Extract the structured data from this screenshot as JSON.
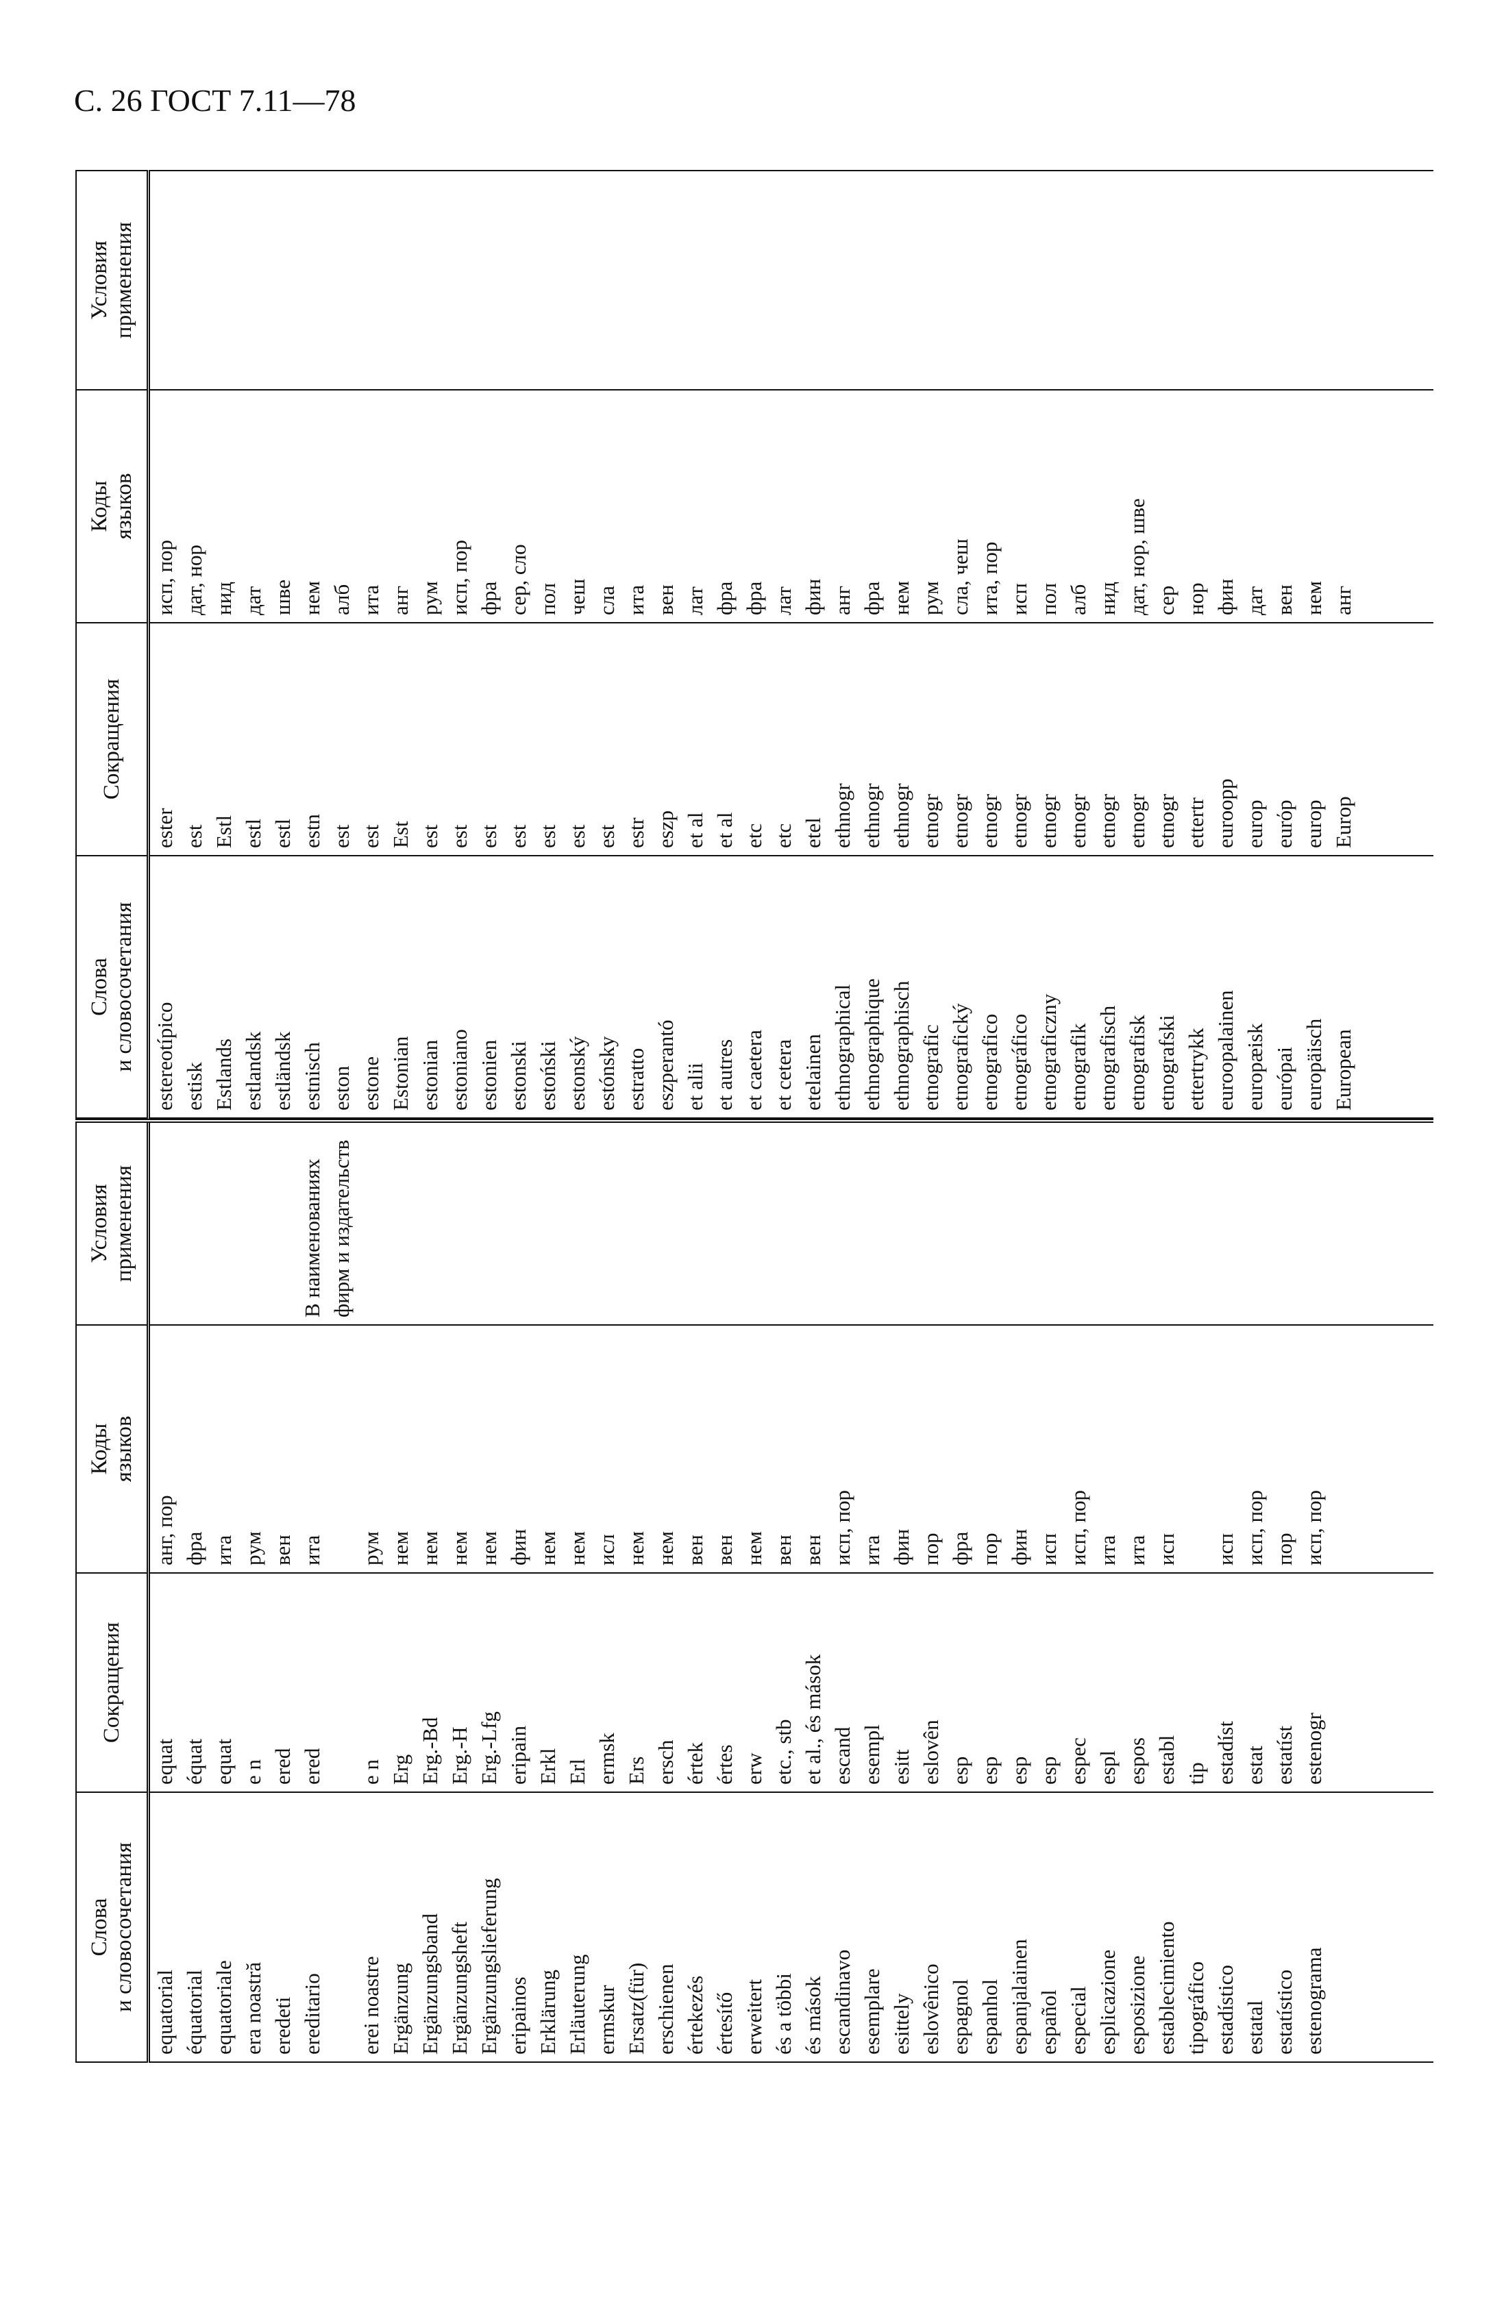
{
  "header": {
    "title": "С. 26 ГОСТ 7.11—78"
  },
  "tables": [
    {
      "columns": [
        "Слова\nи словосочетания",
        "Сокращения",
        "Коды\nязыков",
        "Условия\nприменения"
      ],
      "rows": [
        {
          "word": "equatorial",
          "abbr": "equat",
          "codes": "анг, пор"
        },
        {
          "word": "équatorial",
          "abbr": "équat",
          "codes": "фра"
        },
        {
          "word": "equatoriale",
          "abbr": "equat",
          "codes": "ита"
        },
        {
          "word": "era noastră",
          "abbr": "e n",
          "codes": "рум"
        },
        {
          "word": "eredeti",
          "abbr": "ered",
          "codes": "вен"
        },
        {
          "word": "ereditario",
          "abbr": "ered",
          "codes": "ита",
          "note": "В наименованиях фирм и издательств"
        },
        {
          "word": "erei noastre",
          "abbr": "e n",
          "codes": "рум"
        },
        {
          "word": "Ergänzung",
          "abbr": "Erg",
          "codes": "нем"
        },
        {
          "word": "Ergänzungsband",
          "abbr": "Erg.-Bd",
          "codes": "нем"
        },
        {
          "word": "Ergänzungsheft",
          "abbr": "Erg.-H",
          "codes": "нем"
        },
        {
          "word": "Ergänzungslieferung",
          "abbr": "Erg.-Lfg",
          "codes": "нем"
        },
        {
          "word": "eripainos",
          "abbr": "eripain",
          "codes": "фин"
        },
        {
          "word": "Erklärung",
          "abbr": "Erkl",
          "codes": "нем"
        },
        {
          "word": "Erläuterung",
          "abbr": "Erl",
          "codes": "нем"
        },
        {
          "word": "ermskur",
          "abbr": "ermsk",
          "codes": "исл"
        },
        {
          "word": "Ersatz(für)",
          "abbr": "Ers",
          "codes": "нем"
        },
        {
          "word": "erschienen",
          "abbr": "ersch",
          "codes": "нем"
        },
        {
          "word": "értekezés",
          "abbr": "értek",
          "codes": "вен"
        },
        {
          "word": "értesítő",
          "abbr": "értes",
          "codes": "вен"
        },
        {
          "word": "erweitert",
          "abbr": "erw",
          "codes": "нем"
        },
        {
          "word": "és a többi",
          "abbr": "etc., stb",
          "codes": "вен"
        },
        {
          "word": "és mások",
          "abbr": "et al., és mások",
          "codes": "вен"
        },
        {
          "word": "escandinavo",
          "abbr": "escand",
          "codes": "исп, пор"
        },
        {
          "word": "esemplare",
          "abbr": "esempl",
          "codes": "ита"
        },
        {
          "word": "esittely",
          "abbr": "esitt",
          "codes": "фин"
        },
        {
          "word": "eslovênico",
          "abbr": "eslovên",
          "codes": "пор"
        },
        {
          "word": "espagnol",
          "abbr": "esp",
          "codes": "фра"
        },
        {
          "word": "espanhol",
          "abbr": "esp",
          "codes": "пор"
        },
        {
          "word": "espanjalainen",
          "abbr": "esp",
          "codes": "фин"
        },
        {
          "word": "español",
          "abbr": "esp",
          "codes": "исп"
        },
        {
          "word": "especial",
          "abbr": "espec",
          "codes": "исп, пор"
        },
        {
          "word": "esplicazione",
          "abbr": "espl",
          "codes": "ита"
        },
        {
          "word": "esposizione",
          "abbr": "espos",
          "codes": "ита"
        },
        {
          "word": "establecimiento",
          "abbr": "establ",
          "codes": "исп"
        },
        {
          "word": "tipográfico",
          "abbr": "tip"
        },
        {
          "word": "estadístico",
          "abbr": "estadíst",
          "codes": "исп"
        },
        {
          "word": "estatal",
          "abbr": "estat",
          "codes": "исп, пор"
        },
        {
          "word": "estatístico",
          "abbr": "estatíst",
          "codes": "пор"
        },
        {
          "word": "estenograma",
          "abbr": "estenogr",
          "codes": "исп, пор"
        }
      ]
    },
    {
      "columns": [
        "Слова\nи словосочетания",
        "Сокращения",
        "Коды\nязыков",
        "Условия\nприменения"
      ],
      "rows": [
        {
          "word": "estereotípico",
          "abbr": "ester",
          "codes": "исп, пор"
        },
        {
          "word": "estisk",
          "abbr": "est",
          "codes": "дат, нор"
        },
        {
          "word": "Estlands",
          "abbr": "Estl",
          "codes": "нид"
        },
        {
          "word": "estlandsk",
          "abbr": "estl",
          "codes": "дат"
        },
        {
          "word": "estländsk",
          "abbr": "estl",
          "codes": "шве"
        },
        {
          "word": "estnisch",
          "abbr": "estn",
          "codes": "нем"
        },
        {
          "word": "eston",
          "abbr": "est",
          "codes": "алб"
        },
        {
          "word": "estone",
          "abbr": "est",
          "codes": "ита"
        },
        {
          "word": "Estonian",
          "abbr": "Est",
          "codes": "анг"
        },
        {
          "word": "estonian",
          "abbr": "est",
          "codes": "рум"
        },
        {
          "word": "estoniano",
          "abbr": "est",
          "codes": "исп, пор"
        },
        {
          "word": "estonien",
          "abbr": "est",
          "codes": "фра"
        },
        {
          "word": "estonski",
          "abbr": "est",
          "codes": "сер, сло"
        },
        {
          "word": "estoński",
          "abbr": "est",
          "codes": "пол"
        },
        {
          "word": "estonský",
          "abbr": "est",
          "codes": "чеш"
        },
        {
          "word": "estónsky",
          "abbr": "est",
          "codes": "сла"
        },
        {
          "word": "estratto",
          "abbr": "estr",
          "codes": "ита"
        },
        {
          "word": "eszperantó",
          "abbr": "eszp",
          "codes": "вен"
        },
        {
          "word": "et alii",
          "abbr": "et al",
          "codes": "лат"
        },
        {
          "word": "et autres",
          "abbr": "et al",
          "codes": "фра"
        },
        {
          "word": "et caetera",
          "abbr": "etc",
          "codes": "фра"
        },
        {
          "word": "et cetera",
          "abbr": "etc",
          "codes": "лат"
        },
        {
          "word": "etelainen",
          "abbr": "etel",
          "codes": "фин"
        },
        {
          "word": "ethnographical",
          "abbr": "ethnogr",
          "codes": "анг"
        },
        {
          "word": "ethnographique",
          "abbr": "ethnogr",
          "codes": "фра"
        },
        {
          "word": "ethnographisch",
          "abbr": "ethnogr",
          "codes": "нем"
        },
        {
          "word": "etnografic",
          "abbr": "etnogr",
          "codes": "рум"
        },
        {
          "word": "etnografický",
          "abbr": "etnogr",
          "codes": "сла, чеш"
        },
        {
          "word": "etnografico",
          "abbr": "etnogr",
          "codes": "ита, пор"
        },
        {
          "word": "etnográfico",
          "abbr": "etnogr",
          "codes": "исп"
        },
        {
          "word": "etnograficzny",
          "abbr": "etnogr",
          "codes": "пол"
        },
        {
          "word": "etnografik",
          "abbr": "etnogr",
          "codes": "алб"
        },
        {
          "word": "etnografisch",
          "abbr": "etnogr",
          "codes": "нид"
        },
        {
          "word": "etnografisk",
          "abbr": "etnogr",
          "codes": "дат, нор, шве"
        },
        {
          "word": "etnografski",
          "abbr": "etnogr",
          "codes": "сер"
        },
        {
          "word": "ettertrykk",
          "abbr": "ettertr",
          "codes": "нор"
        },
        {
          "word": "euroopalainen",
          "abbr": "euroopp",
          "codes": "фин"
        },
        {
          "word": "europæisk",
          "abbr": "europ",
          "codes": "дат"
        },
        {
          "word": "európai",
          "abbr": "eurόp",
          "codes": "вен"
        },
        {
          "word": "europäisch",
          "abbr": "europ",
          "codes": "нем"
        },
        {
          "word": "European",
          "abbr": "Europ",
          "codes": "анг"
        }
      ]
    }
  ]
}
